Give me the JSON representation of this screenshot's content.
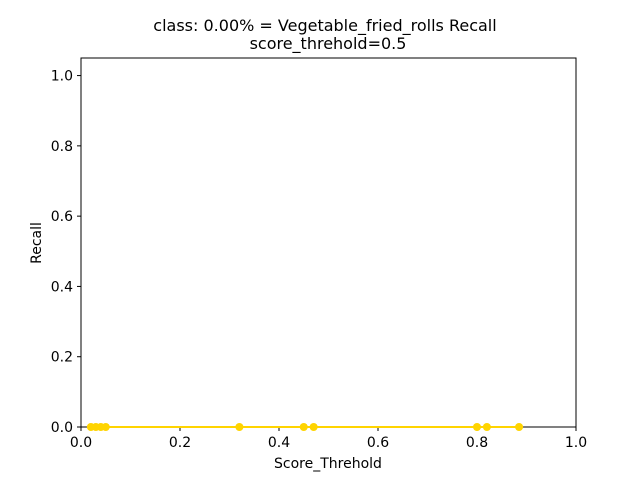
{
  "chart_data": {
    "type": "scatter",
    "title": "class: 0.00% = Vegetable_fried_rolls Recall",
    "subtitle": "score_threhold=0.5",
    "xlabel": "Score_Threhold",
    "ylabel": "Recall",
    "xlim": [
      0.0,
      1.0
    ],
    "ylim": [
      0.0,
      1.05
    ],
    "x_ticks": [
      "0.0",
      "0.2",
      "0.4",
      "0.6",
      "0.8",
      "1.0"
    ],
    "y_ticks": [
      "0.0",
      "0.2",
      "0.4",
      "0.6",
      "0.8",
      "1.0"
    ],
    "grid": false,
    "series": [
      {
        "color": "#ffd400",
        "x": [
          0.02,
          0.03,
          0.04,
          0.05,
          0.32,
          0.45,
          0.47,
          0.8,
          0.82,
          0.885
        ],
        "y": [
          0.0,
          0.0,
          0.0,
          0.0,
          0.0,
          0.0,
          0.0,
          0.0,
          0.0,
          0.0
        ]
      }
    ]
  }
}
